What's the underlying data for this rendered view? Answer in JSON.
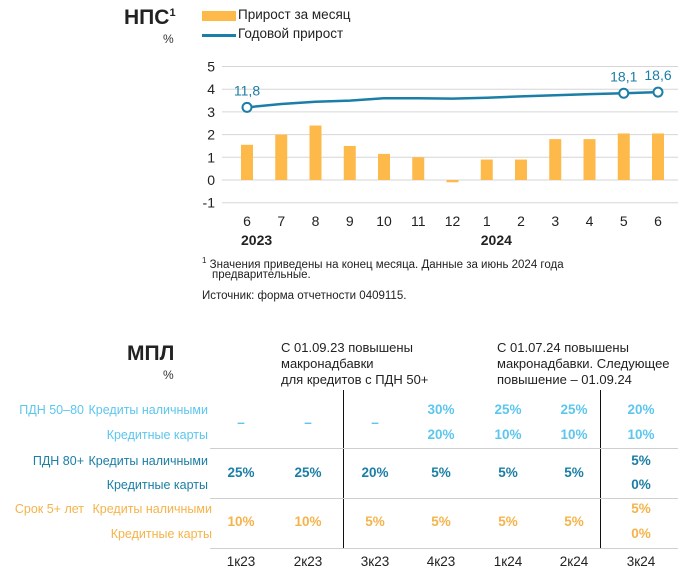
{
  "colors": {
    "bars": "#fdb94a",
    "line": "#1a7ea6",
    "light_blue": "#5cc6ee",
    "dark_blue": "#1a7ea6",
    "orange": "#f5b34a"
  },
  "chart_data": {
    "type": "bar+line",
    "title": "НПС",
    "title_footnote_mark": "1",
    "unit": "%",
    "categories": [
      "6",
      "7",
      "8",
      "9",
      "10",
      "11",
      "12",
      "1",
      "2",
      "3",
      "4",
      "5",
      "6"
    ],
    "year_labels": [
      {
        "label": "2023",
        "at": "6"
      },
      {
        "label": "2024",
        "at": "1"
      }
    ],
    "ylim": [
      -1,
      5
    ],
    "yticks": [
      "5",
      "4",
      "3",
      "2",
      "1",
      "0",
      "-1"
    ],
    "grid": true,
    "legend_position": "top",
    "series": [
      {
        "name": "Прирост за месяц",
        "type": "bar",
        "values": [
          1.55,
          2.0,
          2.4,
          1.5,
          1.15,
          1.0,
          -0.1,
          0.9,
          0.9,
          1.8,
          1.8,
          2.05,
          2.05
        ]
      },
      {
        "name": "Годовой прирост",
        "type": "line",
        "values": [
          11.8,
          13.3,
          14.3,
          14.8,
          15.9,
          15.9,
          15.7,
          16.1,
          16.7,
          17.2,
          17.7,
          18.1,
          18.6
        ],
        "data_labels": [
          {
            "index": 0,
            "text": "11,8"
          },
          {
            "index": 11,
            "text": "18,1"
          },
          {
            "index": 12,
            "text": "18,6"
          }
        ]
      }
    ]
  },
  "footnote": {
    "mark": "1",
    "text": "Значения приведены на конец месяца. Данные за июнь 2024 года",
    "text2": "предварительные.",
    "source": "Источник: форма отчетности 0409115."
  },
  "mpl": {
    "title": "МПЛ",
    "unit": "%",
    "note1": [
      "С 01.09.23 повышены",
      "макронадбавки",
      "для кредитов с ПДН 50+"
    ],
    "note2": [
      "С 01.07.24 повышены",
      "макронадбавки. Следующее",
      "повышение – 01.09.24"
    ],
    "quarters": [
      "1к23",
      "2к23",
      "3к23",
      "4к23",
      "1к24",
      "2к24",
      "3к24"
    ],
    "groups": [
      {
        "label": "ПДН 50–80",
        "sub": [
          "Кредиты наличными",
          "Кредитные карты"
        ],
        "values": [
          [
            "–"
          ],
          [
            "–"
          ],
          [
            "–"
          ],
          [
            "30%",
            "20%"
          ],
          [
            "25%",
            "10%"
          ],
          [
            "25%",
            "10%"
          ],
          [
            "20%",
            "10%"
          ]
        ]
      },
      {
        "label": "ПДН 80+",
        "sub": [
          "Кредиты наличными",
          "Кредитные карты"
        ],
        "values": [
          [
            "25%"
          ],
          [
            "25%"
          ],
          [
            "20%"
          ],
          [
            "5%"
          ],
          [
            "5%"
          ],
          [
            "5%"
          ],
          [
            "5%",
            "0%"
          ]
        ]
      },
      {
        "label": "Срок 5+ лет",
        "sub": [
          "Кредиты наличными",
          "Кредитные карты"
        ],
        "values": [
          [
            "10%"
          ],
          [
            "10%"
          ],
          [
            "5%"
          ],
          [
            "5%"
          ],
          [
            "5%"
          ],
          [
            "5%"
          ],
          [
            "5%",
            "0%"
          ]
        ]
      }
    ]
  }
}
